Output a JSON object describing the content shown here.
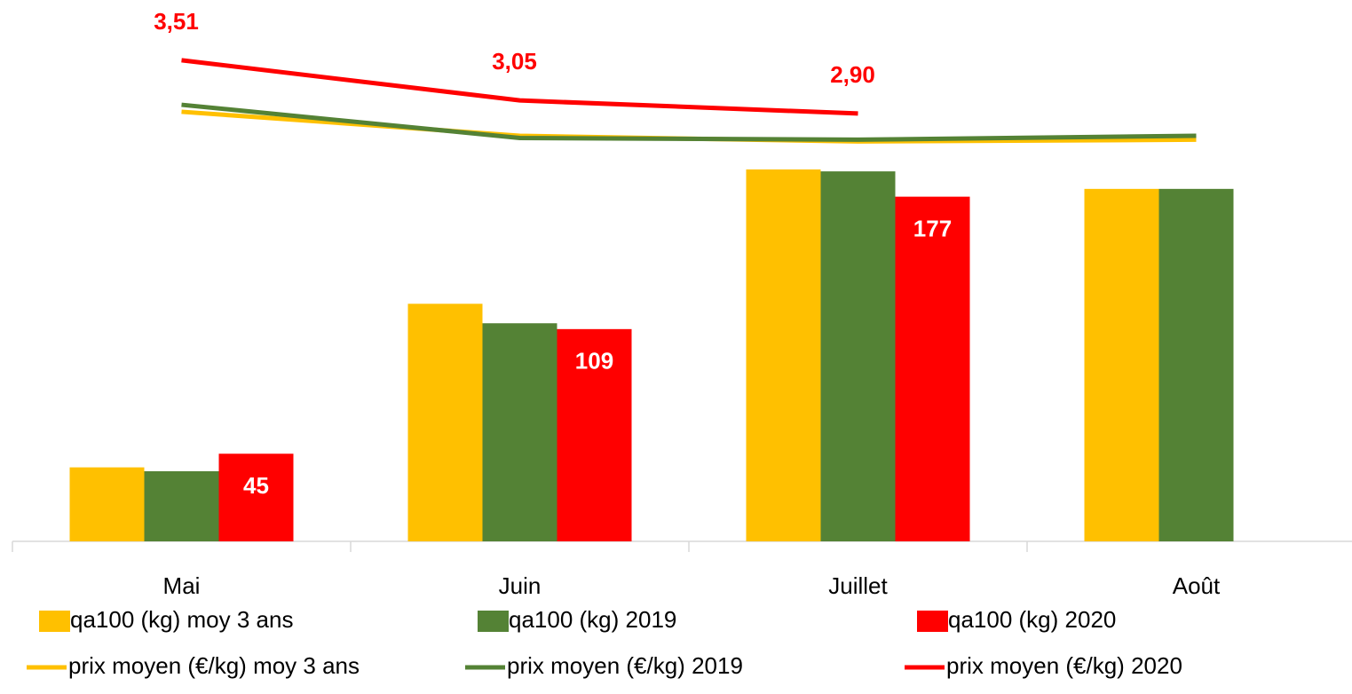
{
  "chart_data": {
    "type": "bar-line",
    "categories": [
      "Mai",
      "Juin",
      "Juillet",
      "Août"
    ],
    "ylim": [
      0,
      278
    ],
    "y2lim": [
      -2,
      4.2
    ],
    "series": [
      {
        "name": "qa100 (kg) moy 3 ans",
        "type": "bar",
        "color": "#ffc000",
        "values": [
          38,
          122,
          191,
          181
        ]
      },
      {
        "name": "qa100 (kg) 2019",
        "type": "bar",
        "color": "#548235",
        "values": [
          36,
          112,
          190,
          181
        ]
      },
      {
        "name": "qa100 (kg) 2020",
        "type": "bar",
        "color": "#ff0000",
        "values": [
          45,
          109,
          177,
          null
        ],
        "labels": true
      },
      {
        "name": "prix moyen (€/kg) moy 3 ans",
        "type": "line",
        "axis": "y2",
        "color": "#ffc000",
        "values": [
          2.92,
          2.645,
          2.58,
          2.6
        ]
      },
      {
        "name": "prix moyen (€/kg) 2019",
        "type": "line",
        "axis": "y2",
        "color": "#548235",
        "values": [
          3.0,
          2.62,
          2.6,
          2.645
        ]
      },
      {
        "name": "prix moyen (€/kg) 2020",
        "type": "line",
        "axis": "y2",
        "color": "#ff0000",
        "values": [
          3.51,
          3.05,
          2.9,
          null
        ],
        "value_labels": [
          "3,51",
          "3,05",
          "2,90",
          null
        ],
        "labels": true
      }
    ]
  }
}
